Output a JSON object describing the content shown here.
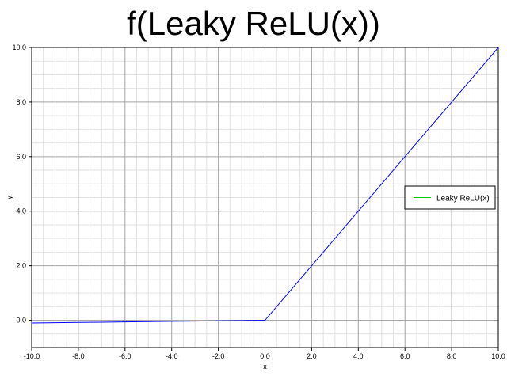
{
  "chart_data": {
    "type": "line",
    "title": "f(Leaky ReLU(x))",
    "xlabel": "x",
    "ylabel": "y",
    "xlim": [
      -10.0,
      10.0
    ],
    "ylim": [
      -1.0,
      10.0
    ],
    "x_ticks": [
      -10.0,
      -8.0,
      -6.0,
      -4.0,
      -2.0,
      0.0,
      2.0,
      4.0,
      6.0,
      8.0,
      10.0
    ],
    "x_tick_labels": [
      "-10.0",
      "-8.0",
      "-6.0",
      "-4.0",
      "-2.0",
      "0.0",
      "2.0",
      "4.0",
      "6.0",
      "8.0",
      "10.0"
    ],
    "y_ticks": [
      0.0,
      2.0,
      4.0,
      6.0,
      8.0,
      10.0
    ],
    "y_tick_labels": [
      "0.0",
      "2.0",
      "4.0",
      "6.0",
      "8.0",
      "10.0"
    ],
    "grid": true,
    "minor_grid": true,
    "legend_position": "right",
    "series": [
      {
        "name": "Leaky ReLU(x)",
        "color": "#0000ff",
        "legend_color": "#00cc00",
        "x": [
          -10,
          -9,
          -8,
          -7,
          -6,
          -5,
          -4,
          -3,
          -2,
          -1,
          0,
          1,
          2,
          3,
          4,
          5,
          6,
          7,
          8,
          9,
          10
        ],
        "values": [
          -0.1,
          -0.09,
          -0.08,
          -0.07,
          -0.06,
          -0.05,
          -0.04,
          -0.03,
          -0.02,
          -0.01,
          0,
          1,
          2,
          3,
          4,
          5,
          6,
          7,
          8,
          9,
          10
        ]
      }
    ]
  }
}
